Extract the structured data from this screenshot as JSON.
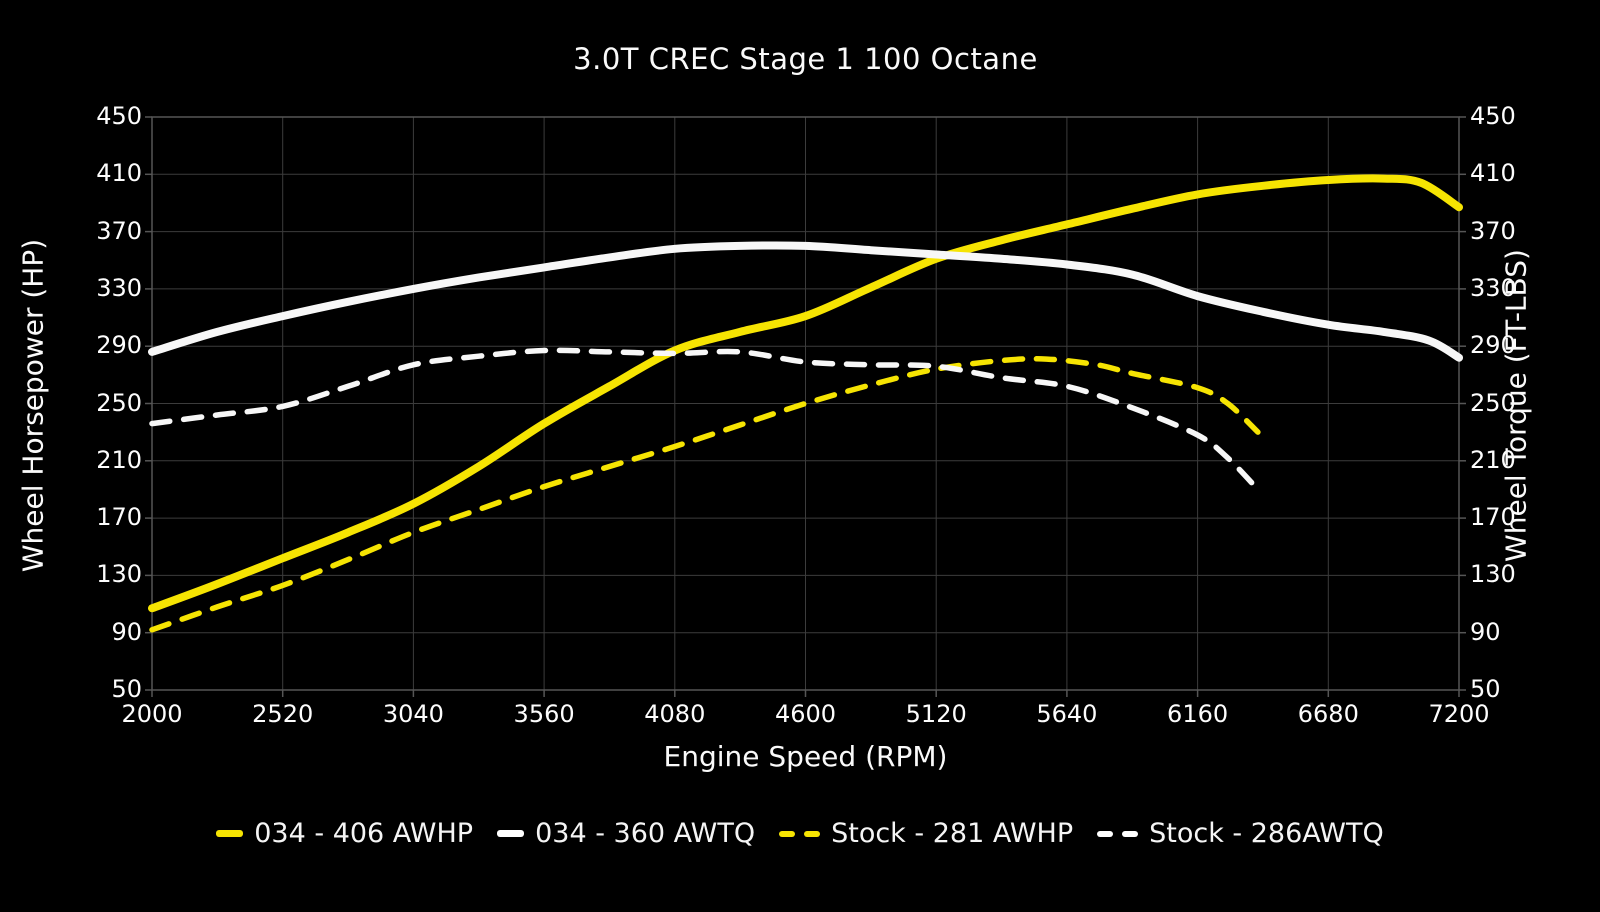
{
  "title": "3.0T CREC Stage 1 100 Octane",
  "colors": {
    "background": "#000000",
    "accent_yellow": "#f6e402",
    "line_white": "#f7f7f7",
    "grid": "#3c3c3c",
    "spine": "#565656",
    "text": "#fafafa"
  },
  "axes": {
    "x": {
      "label": "Engine Speed (RPM)",
      "min": 2000,
      "max": 7200,
      "ticks": [
        2000,
        2520,
        3040,
        3560,
        4080,
        4600,
        5120,
        5640,
        6160,
        6680,
        7200
      ]
    },
    "y_left": {
      "label": "Wheel Horsepower (HP)",
      "min": 50,
      "max": 450,
      "ticks": [
        450,
        410,
        370,
        330,
        290,
        250,
        210,
        170,
        130,
        90,
        50
      ]
    },
    "y_right": {
      "label": "Wheel Torque (FT-LBS)",
      "min": 50,
      "max": 450,
      "ticks": [
        450,
        410,
        370,
        330,
        290,
        250,
        210,
        170,
        130,
        90,
        50
      ]
    }
  },
  "chart_data": {
    "type": "line",
    "title": "3.0T CREC Stage 1 100 Octane",
    "xlabel": "Engine Speed (RPM)",
    "ylabel_left": "Wheel Horsepower (HP)",
    "ylabel_right": "Wheel Torque (FT-LBS)",
    "x_range": [
      2000,
      7200
    ],
    "y_range": [
      50,
      450
    ],
    "grid": true,
    "legend_position": "bottom",
    "series": [
      {
        "name": "034 - 406 AWHP",
        "unit": "HP",
        "axis": "left",
        "color": "#f6e402",
        "style": "solid",
        "peak_value": 406,
        "points": [
          [
            2000,
            107
          ],
          [
            2260,
            124
          ],
          [
            2520,
            142
          ],
          [
            2780,
            160
          ],
          [
            3040,
            180
          ],
          [
            3300,
            206
          ],
          [
            3560,
            236
          ],
          [
            3820,
            262
          ],
          [
            4080,
            287
          ],
          [
            4340,
            300
          ],
          [
            4600,
            311
          ],
          [
            4860,
            331
          ],
          [
            5120,
            351
          ],
          [
            5380,
            364
          ],
          [
            5640,
            375
          ],
          [
            5900,
            386
          ],
          [
            6160,
            396
          ],
          [
            6420,
            402
          ],
          [
            6680,
            406
          ],
          [
            6900,
            407
          ],
          [
            7050,
            404
          ],
          [
            7200,
            387
          ]
        ]
      },
      {
        "name": "034 - 360 AWTQ",
        "unit": "FT-LBS",
        "axis": "right",
        "color": "#f7f7f7",
        "style": "solid",
        "peak_value": 360,
        "points": [
          [
            2000,
            286
          ],
          [
            2260,
            300
          ],
          [
            2520,
            311
          ],
          [
            2780,
            321
          ],
          [
            3040,
            330
          ],
          [
            3300,
            338
          ],
          [
            3560,
            345
          ],
          [
            3820,
            352
          ],
          [
            4080,
            358
          ],
          [
            4340,
            360
          ],
          [
            4600,
            360
          ],
          [
            4860,
            357
          ],
          [
            5120,
            354
          ],
          [
            5380,
            351
          ],
          [
            5640,
            347
          ],
          [
            5900,
            340
          ],
          [
            6160,
            325
          ],
          [
            6420,
            314
          ],
          [
            6680,
            305
          ],
          [
            6900,
            300
          ],
          [
            7080,
            294
          ],
          [
            7200,
            282
          ]
        ]
      },
      {
        "name": "Stock - 281 AWHP",
        "unit": "HP",
        "axis": "left",
        "color": "#f6e402",
        "style": "dashed",
        "peak_value": 281,
        "points": [
          [
            2000,
            92
          ],
          [
            2260,
            108
          ],
          [
            2520,
            123
          ],
          [
            2780,
            141
          ],
          [
            3040,
            160
          ],
          [
            3300,
            176
          ],
          [
            3560,
            192
          ],
          [
            3820,
            206
          ],
          [
            4080,
            220
          ],
          [
            4340,
            235
          ],
          [
            4600,
            250
          ],
          [
            4860,
            263
          ],
          [
            5120,
            274
          ],
          [
            5380,
            280
          ],
          [
            5560,
            281
          ],
          [
            5760,
            277
          ],
          [
            5900,
            271
          ],
          [
            6160,
            261
          ],
          [
            6280,
            250
          ],
          [
            6400,
            230
          ]
        ]
      },
      {
        "name": "Stock - 286AWTQ",
        "unit": "FT-LBS",
        "axis": "right",
        "color": "#f7f7f7",
        "style": "dashed",
        "peak_value": 286,
        "points": [
          [
            2000,
            236
          ],
          [
            2260,
            242
          ],
          [
            2520,
            248
          ],
          [
            2780,
            262
          ],
          [
            3040,
            277
          ],
          [
            3300,
            283
          ],
          [
            3560,
            287
          ],
          [
            3820,
            286
          ],
          [
            4080,
            285
          ],
          [
            4340,
            286
          ],
          [
            4600,
            279
          ],
          [
            4860,
            277
          ],
          [
            5120,
            276
          ],
          [
            5380,
            268
          ],
          [
            5640,
            262
          ],
          [
            5900,
            247
          ],
          [
            6160,
            228
          ],
          [
            6280,
            212
          ],
          [
            6400,
            190
          ]
        ]
      }
    ]
  },
  "legend": {
    "items": [
      {
        "label": "034 - 406 AWHP",
        "color": "yellow",
        "style": "solid"
      },
      {
        "label": "034 - 360 AWTQ",
        "color": "white",
        "style": "solid"
      },
      {
        "label": "Stock - 281 AWHP",
        "color": "yellow",
        "style": "dashed"
      },
      {
        "label": "Stock - 286AWTQ",
        "color": "white",
        "style": "dashed"
      }
    ]
  }
}
